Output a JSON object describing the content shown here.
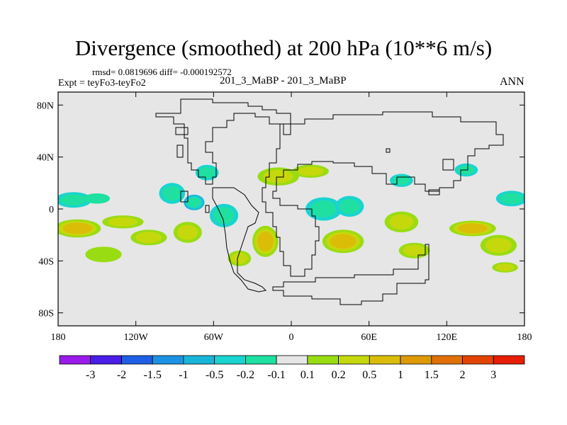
{
  "header": {
    "title": "Divergence (smoothed) at 200 hPa (10**6 m/s)",
    "stats": "rmsd= 0.0819696 diff= -0.000192572",
    "experiment": "Expt = teyFo3-teyFo2",
    "cases": "201_3_MaBP - 201_3_MaBP",
    "season": "ANN"
  },
  "colors": {
    "background_field": "#e6e6e6",
    "coastline": "#000000",
    "palette": [
      "#9a1aeb",
      "#4a1de8",
      "#1e5fe6",
      "#1b92e2",
      "#19b5d9",
      "#19d4d0",
      "#1fe0a0",
      "#e6e6e6",
      "#9adc12",
      "#c5d80c",
      "#dbbd08",
      "#dd9a04",
      "#e07006",
      "#e34403",
      "#e81d05"
    ]
  },
  "colorbar": {
    "labels": [
      "-3",
      "-2",
      "-1.5",
      "-1",
      "-0.5",
      "-0.2",
      "-0.1",
      "0.1",
      "0.2",
      "0.5",
      "1",
      "1.5",
      "2",
      "3"
    ]
  },
  "chart_data": {
    "type": "heatmap",
    "title": "Divergence (smoothed) at 200 hPa (10**6 m/s)",
    "xlabel": "",
    "ylabel": "",
    "xlim": [
      -180,
      180
    ],
    "ylim": [
      -90,
      90
    ],
    "x_ticks": [
      {
        "value": -180,
        "label": "180"
      },
      {
        "value": -120,
        "label": "120W"
      },
      {
        "value": -60,
        "label": "60W"
      },
      {
        "value": 0,
        "label": "0"
      },
      {
        "value": 60,
        "label": "60E"
      },
      {
        "value": 120,
        "label": "120E"
      },
      {
        "value": 180,
        "label": "180"
      }
    ],
    "y_ticks": [
      {
        "value": 80,
        "label": "80N"
      },
      {
        "value": 40,
        "label": "40N"
      },
      {
        "value": 0,
        "label": "0"
      },
      {
        "value": -40,
        "label": "40S"
      },
      {
        "value": -80,
        "label": "80S"
      }
    ],
    "levels": [
      -3,
      -2,
      -1.5,
      -1,
      -0.5,
      -0.2,
      -0.1,
      0.1,
      0.2,
      0.5,
      1,
      1.5,
      2,
      3
    ],
    "features": [
      {
        "name": "tropical-west-pacific",
        "lon": -168,
        "lat": 7,
        "rx": 14,
        "ry": 6,
        "value": -0.3
      },
      {
        "name": "tropical-west-pacific-2",
        "lon": -150,
        "lat": 8,
        "rx": 10,
        "ry": 4,
        "value": -0.15
      },
      {
        "name": "south-pacific-band",
        "lon": -165,
        "lat": -15,
        "rx": 18,
        "ry": 7,
        "value": 0.6
      },
      {
        "name": "south-pacific-band-2",
        "lon": -130,
        "lat": -10,
        "rx": 16,
        "ry": 5,
        "value": 0.3
      },
      {
        "name": "south-pacific-band-3",
        "lon": -110,
        "lat": -22,
        "rx": 14,
        "ry": 6,
        "value": 0.2
      },
      {
        "name": "east-pacific-south",
        "lon": -145,
        "lat": -35,
        "rx": 14,
        "ry": 6,
        "value": 0.15
      },
      {
        "name": "central-america",
        "lon": -92,
        "lat": 12,
        "rx": 10,
        "ry": 8,
        "value": -0.3
      },
      {
        "name": "central-america-2",
        "lon": -75,
        "lat": 5,
        "rx": 8,
        "ry": 6,
        "value": -0.5
      },
      {
        "name": "caribbean",
        "lon": -65,
        "lat": 28,
        "rx": 9,
        "ry": 6,
        "value": -0.2
      },
      {
        "name": "west-atlantic",
        "lon": -52,
        "lat": -5,
        "rx": 11,
        "ry": 9,
        "value": -0.4
      },
      {
        "name": "south-america",
        "lon": -80,
        "lat": -18,
        "rx": 11,
        "ry": 8,
        "value": 0.3
      },
      {
        "name": "south-atlantic",
        "lon": -20,
        "lat": -25,
        "rx": 10,
        "ry": 12,
        "value": 0.8
      },
      {
        "name": "south-atlantic-2",
        "lon": -40,
        "lat": -38,
        "rx": 9,
        "ry": 6,
        "value": 0.3
      },
      {
        "name": "north-africa",
        "lon": -10,
        "lat": 25,
        "rx": 16,
        "ry": 7,
        "value": 0.4
      },
      {
        "name": "mediterranean",
        "lon": 15,
        "lat": 29,
        "rx": 14,
        "ry": 5,
        "value": 0.3
      },
      {
        "name": "west-africa",
        "lon": 25,
        "lat": 0,
        "rx": 14,
        "ry": 9,
        "value": -0.3
      },
      {
        "name": "east-africa",
        "lon": 45,
        "lat": 2,
        "rx": 11,
        "ry": 8,
        "value": -0.2
      },
      {
        "name": "south-africa",
        "lon": 40,
        "lat": -25,
        "rx": 16,
        "ry": 9,
        "value": 0.9
      },
      {
        "name": "indian-ocean",
        "lon": 85,
        "lat": -10,
        "rx": 13,
        "ry": 8,
        "value": 0.3
      },
      {
        "name": "north-india",
        "lon": 85,
        "lat": 22,
        "rx": 9,
        "ry": 5,
        "value": -0.2
      },
      {
        "name": "indian-south",
        "lon": 95,
        "lat": -32,
        "rx": 12,
        "ry": 6,
        "value": 0.2
      },
      {
        "name": "west-pacific-north",
        "lon": 135,
        "lat": 30,
        "rx": 9,
        "ry": 5,
        "value": -0.2
      },
      {
        "name": "tropical-pacific-east",
        "lon": 170,
        "lat": 8,
        "rx": 12,
        "ry": 6,
        "value": -0.3
      },
      {
        "name": "maritime-south",
        "lon": 140,
        "lat": -15,
        "rx": 18,
        "ry": 6,
        "value": 0.5
      },
      {
        "name": "south-west-pacific",
        "lon": 160,
        "lat": -28,
        "rx": 14,
        "ry": 8,
        "value": 0.4
      },
      {
        "name": "far-south-pacific",
        "lon": 165,
        "lat": -45,
        "rx": 10,
        "ry": 4,
        "value": 0.2
      }
    ]
  }
}
